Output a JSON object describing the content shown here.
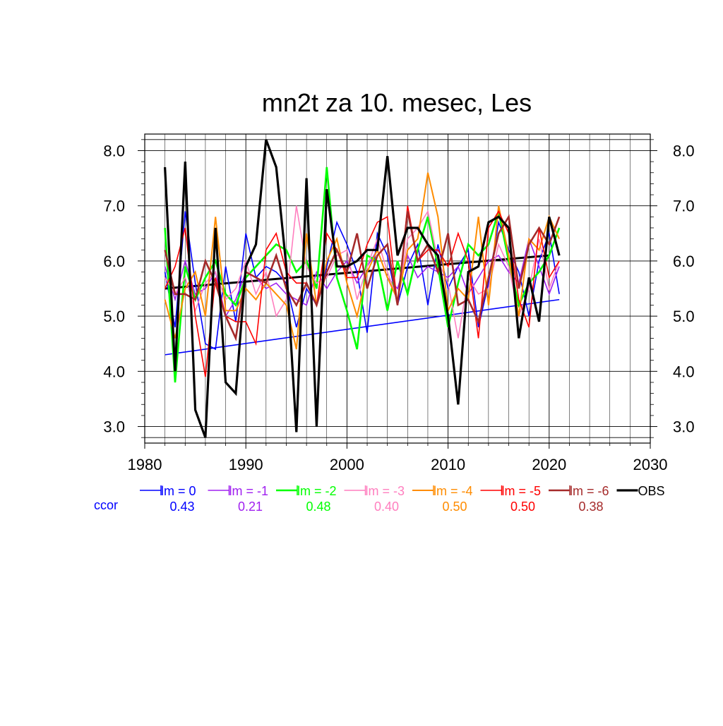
{
  "chart_data": {
    "type": "line",
    "title": "mn2t za 10. mesec, Les",
    "xlabel": "",
    "ylabel": "",
    "xlim": [
      1980,
      2030
    ],
    "ylim": [
      2.7,
      8.3
    ],
    "x_ticks": [
      1980,
      1990,
      2000,
      2010,
      2020,
      2030
    ],
    "x_tick_labels": [
      "1980",
      "1990",
      "2000",
      "2010",
      "2020",
      "2030"
    ],
    "y_ticks": [
      3,
      4,
      5,
      6,
      7,
      8
    ],
    "y_tick_labels": [
      "3.0",
      "4.0",
      "5.0",
      "6.0",
      "7.0",
      "8.0"
    ],
    "grid": true,
    "legend_placement": "bottom",
    "ccor_label": "ccor",
    "x": [
      1982,
      1983,
      1984,
      1985,
      1986,
      1987,
      1988,
      1989,
      1990,
      1991,
      1992,
      1993,
      1994,
      1995,
      1996,
      1997,
      1998,
      1999,
      2000,
      2001,
      2002,
      2003,
      2004,
      2005,
      2006,
      2007,
      2008,
      2009,
      2010,
      2011,
      2012,
      2013,
      2014,
      2015,
      2016,
      2017,
      2018,
      2019,
      2020,
      2021
    ],
    "series": [
      {
        "name": "lm = 0",
        "color": "#0000ff",
        "width": 1.6,
        "ccor": "0.43",
        "values": [
          5.8,
          4.8,
          6.9,
          5.6,
          4.5,
          4.4,
          5.9,
          4.9,
          6.5,
          5.7,
          5.9,
          5.8,
          5.6,
          4.8,
          5.5,
          5.2,
          5.9,
          6.7,
          6.3,
          5.8,
          4.7,
          6.5,
          6.1,
          5.2,
          5.9,
          6.3,
          5.2,
          6.3,
          5.5,
          5.9,
          6.2,
          4.8,
          5.6,
          6.7,
          6.2,
          5.8,
          5.0,
          6.0,
          6.5,
          5.4
        ],
        "trend": [
          4.3,
          5.3
        ]
      },
      {
        "name": "lm = -1",
        "color": "#a020f0",
        "width": 1.6,
        "ccor": "0.21",
        "values": [
          5.9,
          5.3,
          6.0,
          5.4,
          5.5,
          5.8,
          5.0,
          5.3,
          5.8,
          5.7,
          5.5,
          5.6,
          5.4,
          5.3,
          5.2,
          5.8,
          5.5,
          5.8,
          6.0,
          5.6,
          5.9,
          6.2,
          5.7,
          5.5,
          6.1,
          5.7,
          5.9,
          5.8,
          5.7,
          5.9,
          5.4,
          5.7,
          6.0,
          6.1,
          5.8,
          5.6,
          6.4,
          5.9,
          5.4,
          5.9
        ]
      },
      {
        "name": "lm = -2",
        "color": "#00ff00",
        "width": 2.6,
        "ccor": "0.48",
        "values": [
          6.6,
          3.8,
          5.9,
          5.3,
          5.7,
          6.0,
          5.4,
          5.2,
          5.7,
          5.9,
          6.1,
          6.3,
          6.2,
          5.8,
          6.0,
          5.5,
          7.7,
          5.7,
          5.1,
          4.4,
          6.1,
          6.0,
          5.1,
          6.0,
          5.4,
          6.2,
          6.8,
          5.9,
          4.8,
          5.6,
          6.3,
          6.1,
          6.3,
          6.9,
          6.0,
          5.2,
          5.6,
          5.8,
          6.1,
          6.6
        ]
      },
      {
        "name": "lm = -3",
        "color": "#ff7fbf",
        "width": 1.6,
        "ccor": "0.40",
        "values": [
          5.7,
          5.4,
          5.7,
          5.1,
          5.6,
          5.8,
          5.3,
          5.5,
          6.0,
          5.4,
          5.8,
          5.0,
          5.3,
          7.0,
          5.9,
          5.6,
          5.7,
          6.1,
          6.2,
          5.3,
          5.9,
          6.4,
          5.8,
          5.3,
          6.4,
          6.6,
          6.9,
          6.0,
          5.6,
          4.6,
          5.7,
          5.4,
          5.5,
          6.3,
          5.9,
          5.0,
          5.5,
          6.4,
          5.5,
          6.0
        ]
      },
      {
        "name": "lm = -4",
        "color": "#ff8c00",
        "width": 2.0,
        "ccor": "0.50",
        "values": [
          5.3,
          4.6,
          5.5,
          5.8,
          5.0,
          6.8,
          5.1,
          5.1,
          5.5,
          5.3,
          5.6,
          5.4,
          5.2,
          4.4,
          6.5,
          5.2,
          6.0,
          6.4,
          5.6,
          5.0,
          5.8,
          6.2,
          5.7,
          5.3,
          6.2,
          6.4,
          7.6,
          6.8,
          5.1,
          5.5,
          5.3,
          6.8,
          5.2,
          7.0,
          6.1,
          5.0,
          6.4,
          6.2,
          6.8,
          6.4
        ]
      },
      {
        "name": "lm = -5",
        "color": "#ff0000",
        "width": 1.6,
        "ccor": "0.50",
        "values": [
          5.5,
          5.9,
          6.6,
          5.0,
          3.9,
          5.7,
          5.0,
          4.9,
          4.9,
          4.5,
          6.2,
          6.5,
          5.8,
          5.6,
          5.6,
          5.2,
          6.5,
          6.2,
          5.7,
          5.7,
          6.3,
          6.7,
          6.8,
          5.2,
          7.0,
          6.0,
          6.2,
          6.2,
          5.9,
          6.5,
          6.0,
          4.6,
          6.6,
          6.9,
          6.5,
          5.3,
          4.8,
          6.6,
          5.7,
          6.0
        ]
      },
      {
        "name": "lm = -6",
        "color": "#a52a2a",
        "width": 2.6,
        "ccor": "0.38",
        "values": [
          6.2,
          5.4,
          5.4,
          5.3,
          6.0,
          5.6,
          5.0,
          4.6,
          5.8,
          5.7,
          5.6,
          6.1,
          5.5,
          5.2,
          5.6,
          5.2,
          5.8,
          6.2,
          5.8,
          6.5,
          5.5,
          6.1,
          6.3,
          5.2,
          6.9,
          6.0,
          6.3,
          5.8,
          6.5,
          5.2,
          5.3,
          4.9,
          5.7,
          6.5,
          6.8,
          5.5,
          6.3,
          6.6,
          6.3,
          6.8
        ]
      },
      {
        "name": "OBS",
        "color": "#000000",
        "width": 3.2,
        "ccor": "",
        "values": [
          7.7,
          4.0,
          7.8,
          3.3,
          2.8,
          6.6,
          3.8,
          3.6,
          5.9,
          6.3,
          8.2,
          7.7,
          5.9,
          2.9,
          7.5,
          3.0,
          7.3,
          5.9,
          5.9,
          6.0,
          6.2,
          6.2,
          7.9,
          6.1,
          6.6,
          6.6,
          6.3,
          6.1,
          5.0,
          3.4,
          5.8,
          5.9,
          6.7,
          6.8,
          6.6,
          4.6,
          5.7,
          4.9,
          6.8,
          6.1
        ],
        "trend": [
          5.5,
          6.1
        ]
      }
    ]
  }
}
